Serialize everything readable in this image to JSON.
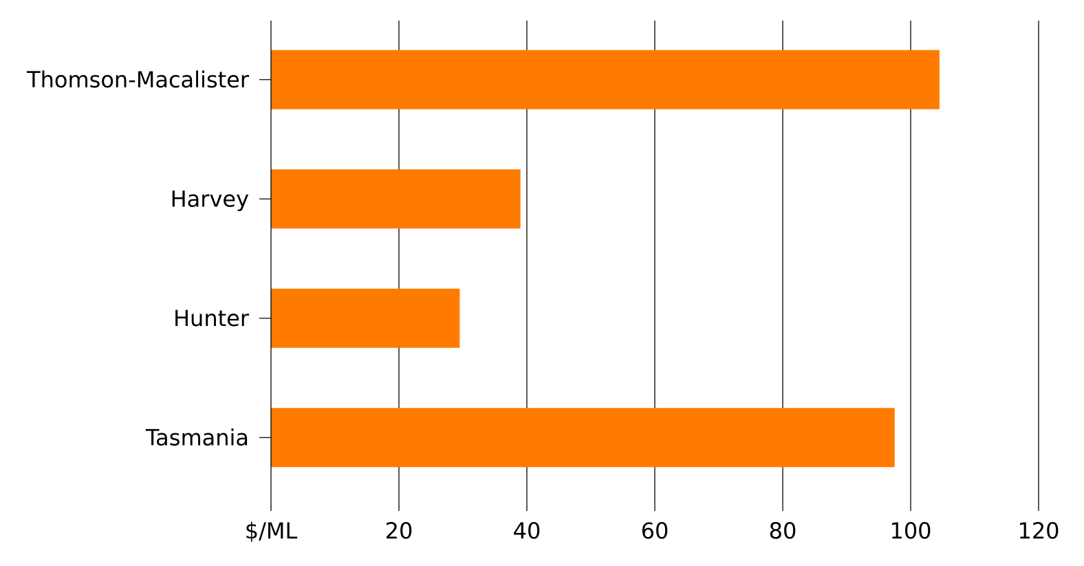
{
  "chart_data": {
    "type": "bar",
    "orientation": "horizontal",
    "categories": [
      "Thomson-Macalister",
      "Harvey",
      "Hunter",
      "Tasmania"
    ],
    "values": [
      104.5,
      39,
      29.5,
      97.5
    ],
    "xlim": [
      0,
      120
    ],
    "x_ticks": [
      {
        "value": 0,
        "label": "$/ML"
      },
      {
        "value": 20,
        "label": "20"
      },
      {
        "value": 40,
        "label": "40"
      },
      {
        "value": 60,
        "label": "60"
      },
      {
        "value": 80,
        "label": "80"
      },
      {
        "value": 100,
        "label": "100"
      },
      {
        "value": 120,
        "label": "120"
      }
    ],
    "grid": "vertical",
    "legend": "none",
    "bar_color": "#FF7B00",
    "grid_color": "#000000"
  }
}
